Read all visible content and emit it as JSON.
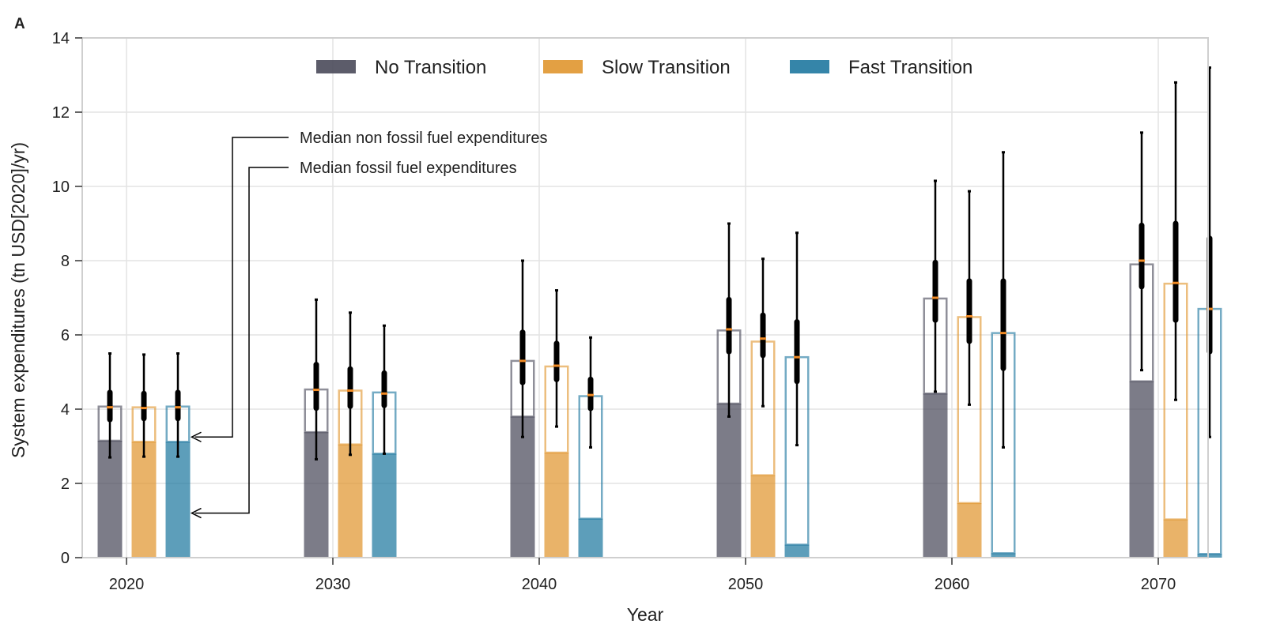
{
  "panel_label": "A",
  "chart_data": {
    "type": "bar",
    "title": "",
    "xlabel": "Year",
    "ylabel": "System expenditures (tn USD[2020]/yr)",
    "ylim": [
      0,
      14
    ],
    "yticks": [
      0,
      2,
      4,
      6,
      8,
      10,
      12,
      14
    ],
    "categories": [
      "2020",
      "2030",
      "2040",
      "2050",
      "2060",
      "2070"
    ],
    "grid": true,
    "legend_position": "top-center",
    "series": [
      {
        "name": "No Transition",
        "color": "#4a4a5a",
        "fossil_median": [
          3.15,
          3.38,
          3.8,
          4.15,
          4.42,
          4.75
        ],
        "total_median": [
          4.07,
          4.53,
          5.3,
          6.12,
          6.98,
          7.9
        ],
        "marker": [
          4.05,
          4.52,
          5.3,
          6.15,
          7.0,
          8.0
        ],
        "whisker_low": [
          2.7,
          2.65,
          3.25,
          3.8,
          4.47,
          5.05
        ],
        "whisker_high": [
          5.5,
          6.95,
          8.0,
          9.0,
          10.15,
          11.45
        ],
        "box_low": [
          3.72,
          4.03,
          4.72,
          5.55,
          6.4,
          7.3
        ],
        "box_high": [
          4.45,
          5.2,
          6.07,
          6.95,
          7.95,
          8.95
        ]
      },
      {
        "name": "Slow Transition",
        "color": "#e0962f",
        "fossil_median": [
          3.12,
          3.05,
          2.83,
          2.22,
          1.47,
          1.03
        ],
        "total_median": [
          4.05,
          4.5,
          5.15,
          5.82,
          6.48,
          7.38
        ],
        "marker": [
          4.03,
          4.5,
          5.17,
          5.9,
          6.5,
          7.4
        ],
        "whisker_low": [
          2.72,
          2.77,
          3.53,
          4.08,
          4.12,
          4.25
        ],
        "whisker_high": [
          5.47,
          6.6,
          7.2,
          8.05,
          9.87,
          12.8
        ],
        "box_low": [
          3.75,
          4.08,
          4.8,
          5.45,
          5.83,
          6.4
        ],
        "box_high": [
          4.42,
          5.08,
          5.77,
          6.53,
          7.45,
          9.0
        ]
      },
      {
        "name": "Fast Transition",
        "color": "#1f78a0",
        "fossil_median": [
          3.12,
          2.8,
          1.05,
          0.35,
          0.12,
          0.1
        ],
        "total_median": [
          4.07,
          4.45,
          4.35,
          5.4,
          6.05,
          6.7
        ],
        "marker": [
          4.05,
          4.42,
          4.38,
          5.4,
          6.05,
          6.7
        ],
        "whisker_low": [
          2.72,
          2.8,
          2.97,
          3.03,
          2.97,
          3.25
        ],
        "whisker_high": [
          5.5,
          6.25,
          5.93,
          8.75,
          10.92,
          13.2
        ],
        "box_low": [
          3.75,
          4.1,
          4.02,
          4.75,
          5.1,
          5.55
        ],
        "box_high": [
          4.45,
          4.97,
          4.8,
          6.35,
          7.45,
          8.6
        ]
      }
    ],
    "annotations": [
      {
        "text": "Median non fossil fuel expenditures",
        "target_category": "2020",
        "target_series": "Fast Transition",
        "target_value": 3.25
      },
      {
        "text": "Median fossil fuel expenditures",
        "target_category": "2020",
        "target_series": "Fast Transition",
        "target_value": 1.2
      }
    ]
  }
}
